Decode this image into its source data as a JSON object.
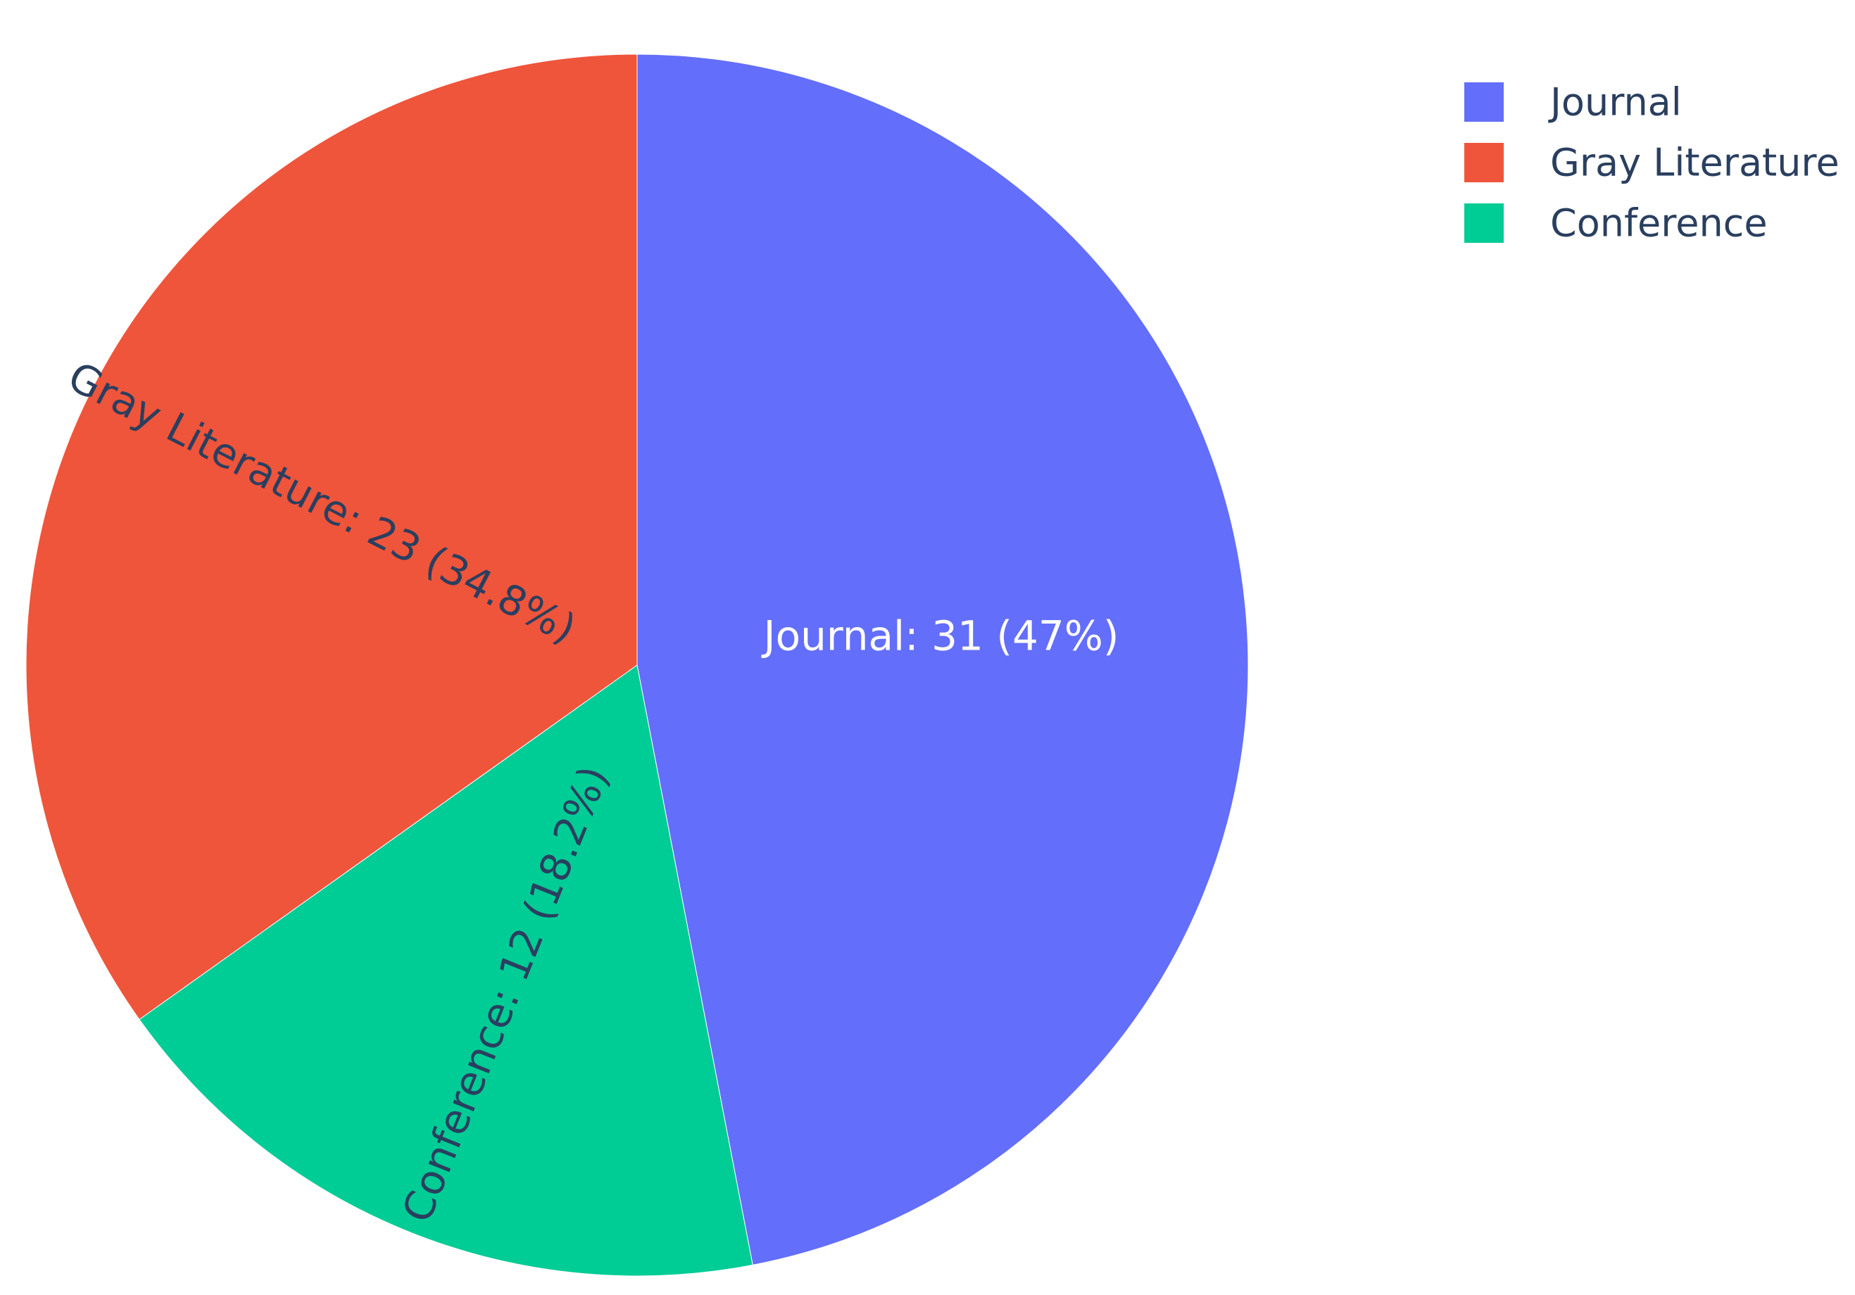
{
  "chart_data": {
    "type": "pie",
    "slices": [
      {
        "label": "Journal",
        "value": 31,
        "percent": "47%",
        "color": "#636efa",
        "text": "Journal: 31 (47%)",
        "text_color": "#ffffff"
      },
      {
        "label": "Conference",
        "value": 12,
        "percent": "18.2%",
        "color": "#00cc96",
        "text": "Conference: 12 (18.2%)",
        "text_color": "#2a3f5f"
      },
      {
        "label": "Gray Literature",
        "value": 23,
        "percent": "34.8%",
        "color": "#ef553b",
        "text": "Gray Literature: 23 (34.8%)",
        "text_color": "#2a3f5f"
      }
    ],
    "legend": {
      "placement": "top-right",
      "entries": [
        {
          "label": "Journal",
          "color": "#636efa"
        },
        {
          "label": "Gray Literature",
          "color": "#ef553b"
        },
        {
          "label": "Conference",
          "color": "#00cc96"
        }
      ]
    }
  }
}
